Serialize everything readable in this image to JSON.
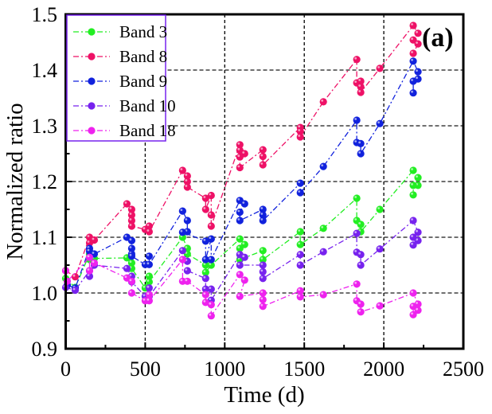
{
  "chart_data": {
    "type": "scatter",
    "title": "",
    "annotation": "(a)",
    "xlabel": "Time (d)",
    "ylabel": "Normalized ratio",
    "xlim": [
      0,
      2500
    ],
    "ylim": [
      0.9,
      1.5
    ],
    "xticks": [
      "0",
      "500",
      "1000",
      "1500",
      "2000",
      "2500"
    ],
    "yticks": [
      "0.9",
      "1.0",
      "1.1",
      "1.2",
      "1.3",
      "1.4",
      "1.5"
    ],
    "grid": "dashed, major ticks",
    "legend_position": "top-left",
    "series": [
      {
        "name": "Band 3",
        "color": "#22ee22",
        "points": [
          [
            0,
            1.026
          ],
          [
            60,
            1.01
          ],
          [
            150,
            1.07
          ],
          [
            150,
            1.06
          ],
          [
            180,
            1.062
          ],
          [
            385,
            1.063
          ],
          [
            415,
            1.054
          ],
          [
            415,
            1.044
          ],
          [
            500,
            1.009
          ],
          [
            525,
            1.03
          ],
          [
            525,
            1.02
          ],
          [
            735,
            1.1
          ],
          [
            765,
            1.08
          ],
          [
            765,
            1.07
          ],
          [
            880,
            1.05
          ],
          [
            880,
            1.037
          ],
          [
            915,
            1.05
          ],
          [
            1095,
            1.097
          ],
          [
            1125,
            1.087
          ],
          [
            1095,
            1.08
          ],
          [
            1095,
            1.06
          ],
          [
            1240,
            1.076
          ],
          [
            1240,
            1.06
          ],
          [
            1475,
            1.11
          ],
          [
            1475,
            1.087
          ],
          [
            1620,
            1.116
          ],
          [
            1830,
            1.17
          ],
          [
            1830,
            1.13
          ],
          [
            1855,
            1.123
          ],
          [
            1855,
            1.11
          ],
          [
            1975,
            1.15
          ],
          [
            2185,
            1.22
          ],
          [
            2215,
            1.207
          ],
          [
            2215,
            1.193
          ],
          [
            2185,
            1.193
          ],
          [
            2185,
            1.176
          ]
        ]
      },
      {
        "name": "Band 8",
        "color": "#ee1166",
        "points": [
          [
            0,
            1.04
          ],
          [
            60,
            1.029
          ],
          [
            150,
            1.1
          ],
          [
            150,
            1.09
          ],
          [
            180,
            1.095
          ],
          [
            385,
            1.16
          ],
          [
            415,
            1.15
          ],
          [
            415,
            1.14
          ],
          [
            415,
            1.13
          ],
          [
            415,
            1.12
          ],
          [
            500,
            1.114
          ],
          [
            525,
            1.12
          ],
          [
            525,
            1.11
          ],
          [
            735,
            1.22
          ],
          [
            765,
            1.21
          ],
          [
            765,
            1.2
          ],
          [
            765,
            1.19
          ],
          [
            880,
            1.17
          ],
          [
            880,
            1.15
          ],
          [
            915,
            1.175
          ],
          [
            915,
            1.14
          ],
          [
            915,
            1.12
          ],
          [
            1095,
            1.266
          ],
          [
            1095,
            1.256
          ],
          [
            1125,
            1.25
          ],
          [
            1095,
            1.244
          ],
          [
            1095,
            1.225
          ],
          [
            1240,
            1.257
          ],
          [
            1240,
            1.245
          ],
          [
            1240,
            1.23
          ],
          [
            1475,
            1.297
          ],
          [
            1475,
            1.29
          ],
          [
            1475,
            1.28
          ],
          [
            1620,
            1.343
          ],
          [
            1830,
            1.419
          ],
          [
            1830,
            1.377
          ],
          [
            1855,
            1.38
          ],
          [
            1855,
            1.37
          ],
          [
            1855,
            1.36
          ],
          [
            1975,
            1.403
          ],
          [
            2185,
            1.48
          ],
          [
            2215,
            1.466
          ],
          [
            2185,
            1.454
          ],
          [
            2215,
            1.447
          ],
          [
            2185,
            1.43
          ]
        ]
      },
      {
        "name": "Band 9",
        "color": "#1122dd",
        "points": [
          [
            10,
            1.014
          ],
          [
            60,
            1.009
          ],
          [
            150,
            1.08
          ],
          [
            150,
            1.075
          ],
          [
            180,
            1.07
          ],
          [
            385,
            1.1
          ],
          [
            415,
            1.094
          ],
          [
            415,
            1.08
          ],
          [
            415,
            1.07
          ],
          [
            415,
            1.066
          ],
          [
            500,
            1.051
          ],
          [
            525,
            1.066
          ],
          [
            525,
            1.051
          ],
          [
            735,
            1.147
          ],
          [
            765,
            1.13
          ],
          [
            765,
            1.11
          ],
          [
            735,
            1.109
          ],
          [
            880,
            1.093
          ],
          [
            880,
            1.06
          ],
          [
            915,
            1.097
          ],
          [
            915,
            1.06
          ],
          [
            1095,
            1.166
          ],
          [
            1125,
            1.16
          ],
          [
            1095,
            1.145
          ],
          [
            1095,
            1.13
          ],
          [
            1240,
            1.15
          ],
          [
            1240,
            1.14
          ],
          [
            1240,
            1.13
          ],
          [
            1475,
            1.197
          ],
          [
            1475,
            1.18
          ],
          [
            1620,
            1.227
          ],
          [
            1830,
            1.31
          ],
          [
            1830,
            1.27
          ],
          [
            1855,
            1.268
          ],
          [
            1855,
            1.25
          ],
          [
            1975,
            1.304
          ],
          [
            2185,
            1.416
          ],
          [
            2215,
            1.397
          ],
          [
            2215,
            1.384
          ],
          [
            2185,
            1.38
          ],
          [
            2185,
            1.359
          ]
        ]
      },
      {
        "name": "Band 10",
        "color": "#7722ee",
        "points": [
          [
            0,
            1.01
          ],
          [
            60,
            1.005
          ],
          [
            150,
            1.04
          ],
          [
            150,
            1.03
          ],
          [
            180,
            1.05
          ],
          [
            385,
            1.044
          ],
          [
            415,
            1.03
          ],
          [
            415,
            1.02
          ],
          [
            500,
            0.994
          ],
          [
            525,
            1.009
          ],
          [
            525,
            0.994
          ],
          [
            735,
            1.076
          ],
          [
            765,
            1.057
          ],
          [
            765,
            1.04
          ],
          [
            880,
            1.026
          ],
          [
            880,
            1.007
          ],
          [
            915,
            1.007
          ],
          [
            915,
            0.987
          ],
          [
            1095,
            1.069
          ],
          [
            1125,
            1.064
          ],
          [
            1095,
            1.05
          ],
          [
            1240,
            1.05
          ],
          [
            1240,
            1.038
          ],
          [
            1240,
            1.026
          ],
          [
            1475,
            1.069
          ],
          [
            1475,
            1.05
          ],
          [
            1620,
            1.074
          ],
          [
            1830,
            1.107
          ],
          [
            1830,
            1.073
          ],
          [
            1855,
            1.069
          ],
          [
            1855,
            1.05
          ],
          [
            1975,
            1.079
          ],
          [
            2185,
            1.13
          ],
          [
            2215,
            1.109
          ],
          [
            2215,
            1.094
          ],
          [
            2185,
            1.1
          ],
          [
            2185,
            1.086
          ]
        ]
      },
      {
        "name": "Band 18",
        "color": "#ee22ee",
        "points": [
          [
            0,
            1.04
          ],
          [
            10,
            1.021
          ],
          [
            150,
            1.064
          ],
          [
            150,
            1.04
          ],
          [
            180,
            1.054
          ],
          [
            385,
            1.027
          ],
          [
            415,
            1.021
          ],
          [
            415,
            1.0
          ],
          [
            500,
            0.986
          ],
          [
            525,
            0.997
          ],
          [
            525,
            0.986
          ],
          [
            735,
            1.06
          ],
          [
            735,
            1.021
          ],
          [
            765,
            1.021
          ],
          [
            880,
            0.997
          ],
          [
            880,
            0.983
          ],
          [
            915,
            0.979
          ],
          [
            915,
            0.959
          ],
          [
            1095,
            1.033
          ],
          [
            1125,
            1.023
          ],
          [
            1095,
            0.994
          ],
          [
            1240,
            1.0
          ],
          [
            1240,
            0.988
          ],
          [
            1240,
            0.976
          ],
          [
            1475,
            1.004
          ],
          [
            1475,
            0.993
          ],
          [
            1620,
            0.997
          ],
          [
            1830,
            1.016
          ],
          [
            1830,
            0.986
          ],
          [
            1855,
            0.98
          ],
          [
            1855,
            0.966
          ],
          [
            1975,
            0.977
          ],
          [
            2185,
            1.0
          ],
          [
            2215,
            0.98
          ],
          [
            2215,
            0.969
          ],
          [
            2185,
            0.976
          ],
          [
            2185,
            0.961
          ]
        ]
      }
    ]
  }
}
